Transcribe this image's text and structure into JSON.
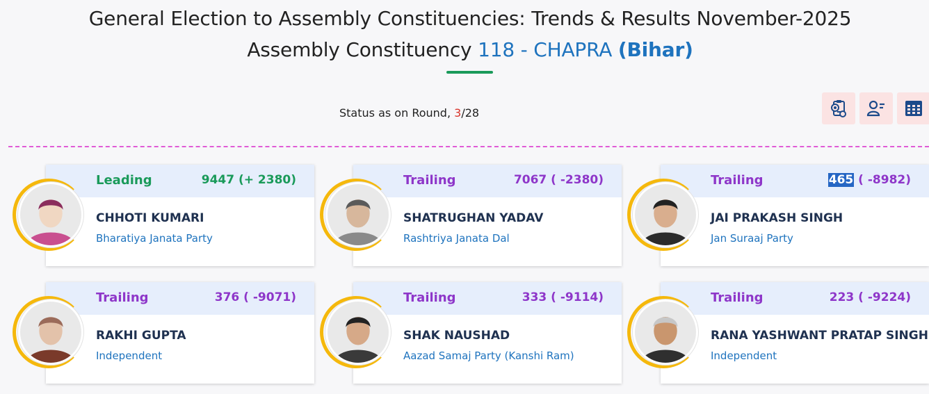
{
  "header": {
    "title_line1": "General Election to Assembly Constituencies: Trends & Results November-2025",
    "title_prefix": "Assembly Constituency",
    "constituency": "118 - CHAPRA",
    "state": "(Bihar)"
  },
  "status": {
    "label": "Status as on Round,",
    "current_round": "3",
    "separator": "/",
    "total_rounds": "28"
  },
  "toolbar": {
    "icons": [
      "result-sheet-icon",
      "candidate-list-icon",
      "table-grid-icon"
    ],
    "accent": "#fbe3e3",
    "icon_color": "#1c4a8a"
  },
  "candidates": [
    {
      "status": "Leading",
      "votes": "9447 (+ 2380)",
      "name": "CHHOTI KUMARI",
      "party": "Bharatiya Janata Party"
    },
    {
      "status": "Trailing",
      "votes": "7067 ( -2380)",
      "name": "SHATRUGHAN YADAV",
      "party": "Rashtriya Janata Dal"
    },
    {
      "status": "Trailing",
      "votes_highlight": "465",
      "votes": " ( -8982)",
      "name": "JAI PRAKASH SINGH",
      "party": "Jan Suraaj Party"
    },
    {
      "status": "Trailing",
      "votes": "376 ( -9071)",
      "name": "RAKHI GUPTA",
      "party": "Independent"
    },
    {
      "status": "Trailing",
      "votes": "333 ( -9114)",
      "name": "SHAK NAUSHAD",
      "party": "Aazad Samaj Party (Kanshi Ram)"
    },
    {
      "status": "Trailing",
      "votes": "223 ( -9224)",
      "name": "RANA YASHWANT PRATAP SINGH",
      "party": "Independent"
    }
  ],
  "colors": {
    "leading": "#1a9a5a",
    "trailing": "#8e36c9",
    "party": "#1e73be",
    "name": "#1f3150",
    "card_header": "#e6eefc",
    "ring": "#f5b80c",
    "divider": "#e05bd6"
  }
}
